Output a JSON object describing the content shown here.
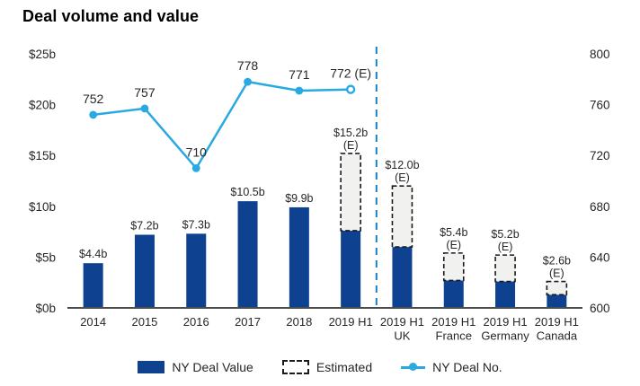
{
  "title": "Deal volume and value",
  "colors": {
    "bar": "#0E4190",
    "estimated_fill": "#F1F1EF",
    "estimated_border": "#1A1A1A",
    "line": "#29A9E1",
    "divider": "#1B7EC5",
    "axis_line": "#4D4D4D",
    "text": "#262626"
  },
  "legend": [
    {
      "label": "NY Deal Value",
      "swatch": "solid-bar-swatch"
    },
    {
      "label": "Estimated",
      "swatch": "dashed-box-swatch"
    },
    {
      "label": "NY Deal No.",
      "swatch": "line-marker-swatch"
    }
  ],
  "chart_data": {
    "type": "bar",
    "subtype": "combo bar + line, dual axis",
    "title": "Deal volume and value",
    "categories": [
      "2014",
      "2015",
      "2016",
      "2017",
      "2018",
      "2019 H1",
      "2019 H1 UK",
      "2019 H1 France",
      "2019 H1 Germany",
      "2019 H1 Canada"
    ],
    "category_lines": [
      [
        "2014"
      ],
      [
        "2015"
      ],
      [
        "2016"
      ],
      [
        "2017"
      ],
      [
        "2018"
      ],
      [
        "2019 H1"
      ],
      [
        "2019 H1",
        "UK"
      ],
      [
        "2019 H1",
        "France"
      ],
      [
        "2019 H1",
        "Germany"
      ],
      [
        "2019 H1",
        "Canada"
      ]
    ],
    "bar_series": {
      "name": "NY Deal Value",
      "values_b": [
        4.4,
        7.2,
        7.3,
        10.5,
        9.9,
        15.2,
        12.0,
        5.4,
        5.2,
        2.6
      ],
      "actual_portion_b": [
        4.4,
        7.2,
        7.3,
        10.5,
        9.9,
        7.6,
        6.0,
        2.7,
        2.6,
        1.3
      ],
      "estimated": [
        false,
        false,
        false,
        false,
        false,
        true,
        true,
        true,
        true,
        true
      ],
      "label_lines": [
        [
          "$4.4b"
        ],
        [
          "$7.2b"
        ],
        [
          "$7.3b"
        ],
        [
          "$10.5b"
        ],
        [
          "$9.9b"
        ],
        [
          "$15.2b",
          "(E)"
        ],
        [
          "$12.0b",
          "(E)"
        ],
        [
          "$5.4b",
          "(E)"
        ],
        [
          "$5.2b",
          "(E)"
        ],
        [
          "$2.6b",
          "(E)"
        ]
      ]
    },
    "line_series": {
      "name": "NY Deal No.",
      "values": [
        752,
        757,
        710,
        778,
        771,
        772
      ],
      "labels": [
        "752",
        "757",
        "710",
        "778",
        "771",
        "772 (E)"
      ],
      "last_point_estimated": true
    },
    "left_axis": {
      "ticks": [
        "$25b",
        "$20b",
        "$15b",
        "$10b",
        "$5b",
        "$0b"
      ],
      "values": [
        25,
        20,
        15,
        10,
        5,
        0
      ],
      "min": 0,
      "max": 25
    },
    "right_axis": {
      "ticks": [
        "800",
        "760",
        "720",
        "680",
        "640",
        "600"
      ],
      "values": [
        800,
        760,
        720,
        680,
        640,
        600
      ],
      "min": 600,
      "max": 800
    },
    "divider_after_category_index": 5,
    "grid": "off",
    "legend_position": "bottom"
  }
}
